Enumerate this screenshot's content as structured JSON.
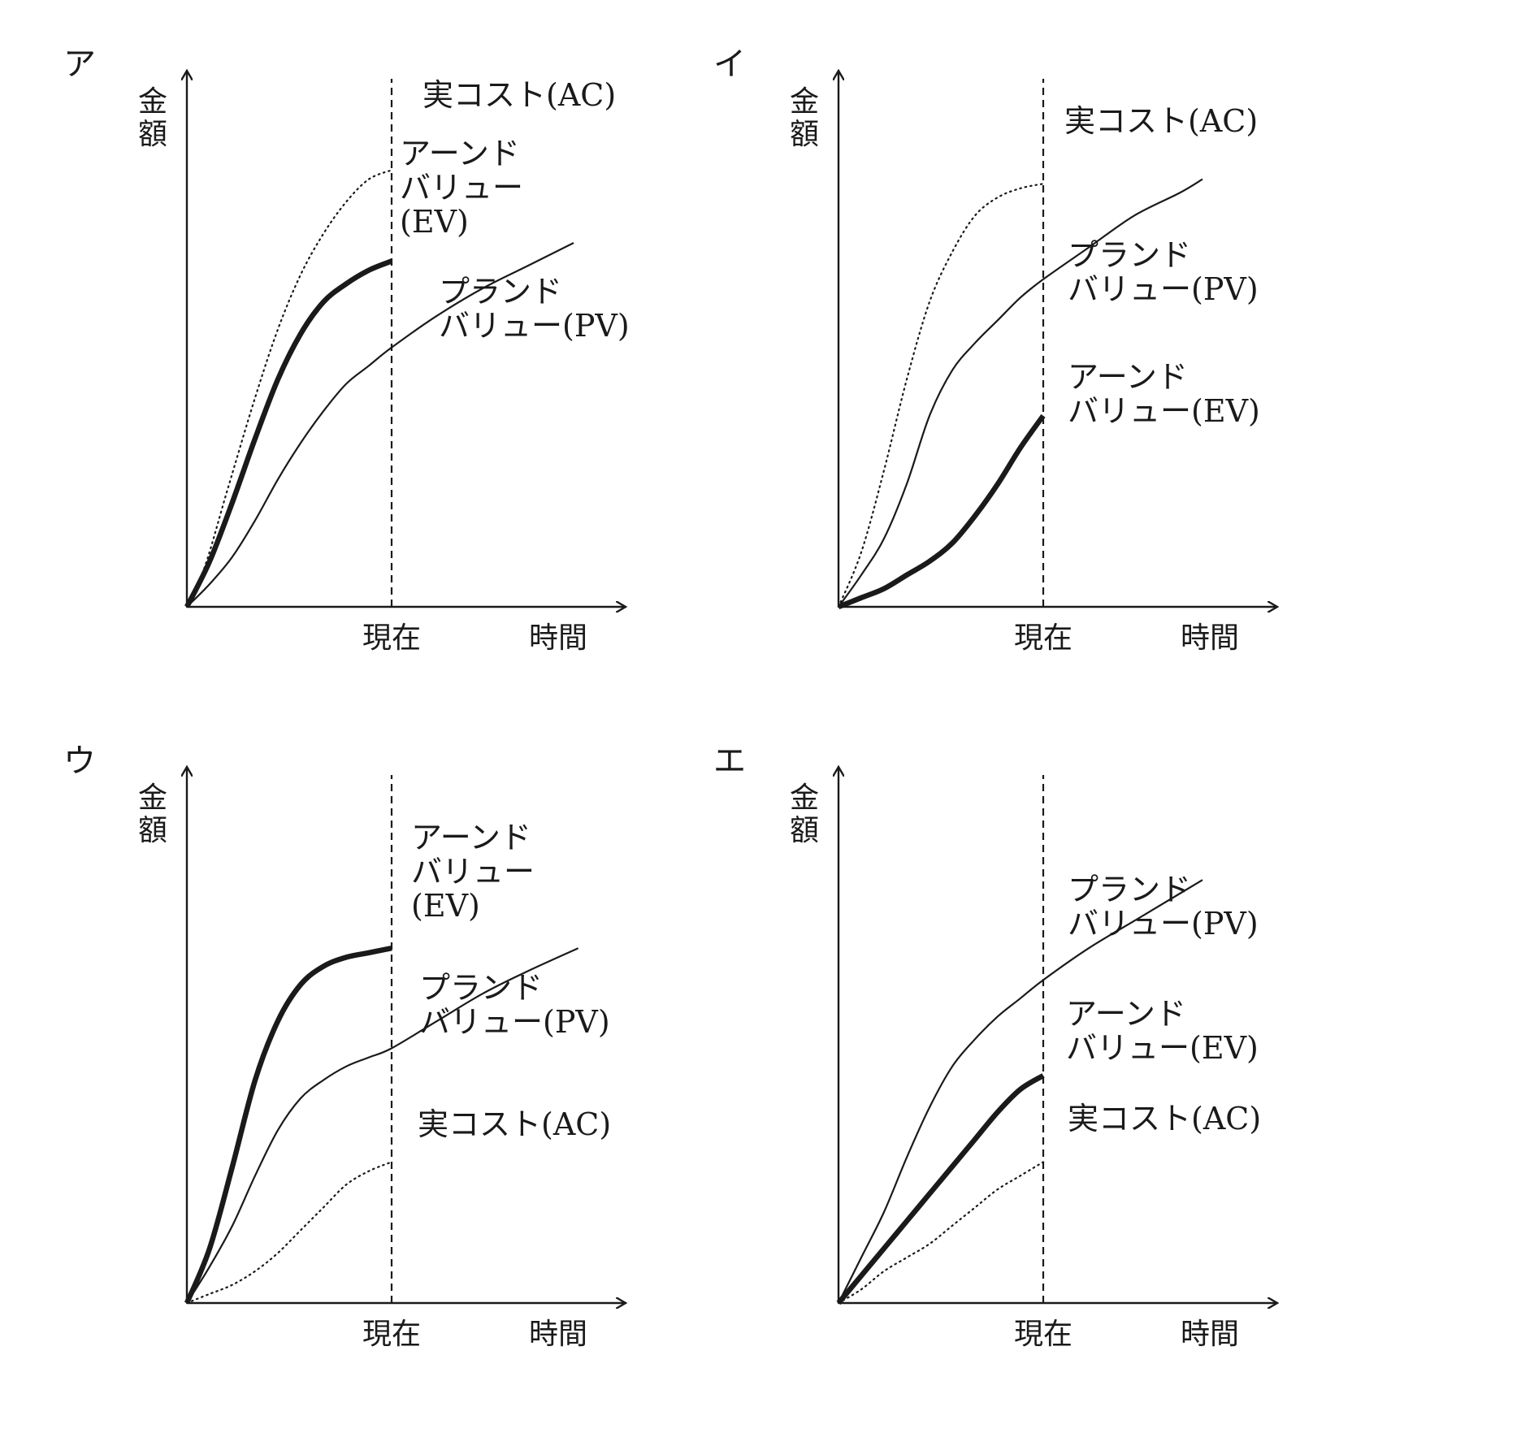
{
  "chart_data": [
    {
      "type": "line",
      "panel": "ア",
      "ylabel": "金額",
      "xlabel": "時間",
      "now_label": "現在",
      "series": [
        {
          "key": "ac",
          "name": "実コスト(AC)",
          "style": "dotted",
          "label_lines": [
            "実コスト(AC)"
          ],
          "points": [
            [
              0,
              0
            ],
            [
              0.04,
              0.09
            ],
            [
              0.09,
              0.26
            ],
            [
              0.15,
              0.46
            ],
            [
              0.2,
              0.61
            ],
            [
              0.25,
              0.73
            ],
            [
              0.3,
              0.82
            ],
            [
              0.35,
              0.89
            ],
            [
              0.4,
              0.94
            ],
            [
              0.45,
              0.96
            ]
          ]
        },
        {
          "key": "ev",
          "name": "アーンドバリュー(EV)",
          "style": "thick",
          "label_lines": [
            "アーンド",
            "バリュー",
            "(EV)"
          ],
          "points": [
            [
              0,
              0
            ],
            [
              0.05,
              0.1
            ],
            [
              0.1,
              0.23
            ],
            [
              0.15,
              0.37
            ],
            [
              0.2,
              0.5
            ],
            [
              0.25,
              0.6
            ],
            [
              0.3,
              0.67
            ],
            [
              0.35,
              0.71
            ],
            [
              0.4,
              0.74
            ],
            [
              0.45,
              0.76
            ]
          ]
        },
        {
          "key": "pv",
          "name": "プランドバリュー(PV)",
          "style": "thin",
          "label_lines": [
            "プランド",
            "バリュー(PV)"
          ],
          "points": [
            [
              0,
              0
            ],
            [
              0.05,
              0.05
            ],
            [
              0.1,
              0.11
            ],
            [
              0.15,
              0.19
            ],
            [
              0.2,
              0.28
            ],
            [
              0.25,
              0.36
            ],
            [
              0.3,
              0.43
            ],
            [
              0.35,
              0.49
            ],
            [
              0.4,
              0.53
            ],
            [
              0.45,
              0.57
            ],
            [
              0.55,
              0.64
            ],
            [
              0.65,
              0.7
            ],
            [
              0.75,
              0.75
            ],
            [
              0.85,
              0.8
            ]
          ]
        }
      ]
    },
    {
      "type": "line",
      "panel": "イ",
      "ylabel": "金額",
      "xlabel": "時間",
      "now_label": "現在",
      "series": [
        {
          "key": "ac",
          "name": "実コスト(AC)",
          "style": "dotted",
          "label_lines": [
            "実コスト(AC)"
          ],
          "points": [
            [
              0,
              0
            ],
            [
              0.05,
              0.12
            ],
            [
              0.1,
              0.3
            ],
            [
              0.15,
              0.5
            ],
            [
              0.2,
              0.67
            ],
            [
              0.25,
              0.78
            ],
            [
              0.3,
              0.86
            ],
            [
              0.35,
              0.9
            ],
            [
              0.4,
              0.92
            ],
            [
              0.45,
              0.93
            ]
          ]
        },
        {
          "key": "pv",
          "name": "プランドバリュー(PV)",
          "style": "thin",
          "label_lines": [
            "プランド",
            "バリュー(PV)"
          ],
          "points": [
            [
              0,
              0
            ],
            [
              0.05,
              0.07
            ],
            [
              0.1,
              0.15
            ],
            [
              0.15,
              0.27
            ],
            [
              0.2,
              0.42
            ],
            [
              0.25,
              0.52
            ],
            [
              0.3,
              0.58
            ],
            [
              0.35,
              0.63
            ],
            [
              0.4,
              0.68
            ],
            [
              0.45,
              0.72
            ],
            [
              0.55,
              0.79
            ],
            [
              0.65,
              0.86
            ],
            [
              0.75,
              0.91
            ],
            [
              0.8,
              0.94
            ]
          ]
        },
        {
          "key": "ev",
          "name": "アーンドバリュー(EV)",
          "style": "thick",
          "label_lines": [
            "アーンド",
            "バリュー(EV)"
          ],
          "points": [
            [
              0,
              0
            ],
            [
              0.05,
              0.02
            ],
            [
              0.1,
              0.04
            ],
            [
              0.15,
              0.07
            ],
            [
              0.2,
              0.1
            ],
            [
              0.25,
              0.14
            ],
            [
              0.3,
              0.2
            ],
            [
              0.35,
              0.27
            ],
            [
              0.4,
              0.35
            ],
            [
              0.45,
              0.42
            ]
          ]
        }
      ]
    },
    {
      "type": "line",
      "panel": "ウ",
      "ylabel": "金額",
      "xlabel": "時間",
      "now_label": "現在",
      "series": [
        {
          "key": "ev",
          "name": "アーンドバリュー(EV)",
          "style": "thick",
          "label_lines": [
            "アーンド",
            "バリュー",
            "(EV)"
          ],
          "points": [
            [
              0,
              0
            ],
            [
              0.05,
              0.12
            ],
            [
              0.1,
              0.3
            ],
            [
              0.15,
              0.49
            ],
            [
              0.2,
              0.62
            ],
            [
              0.25,
              0.7
            ],
            [
              0.3,
              0.74
            ],
            [
              0.35,
              0.76
            ],
            [
              0.4,
              0.77
            ],
            [
              0.45,
              0.78
            ]
          ]
        },
        {
          "key": "pv",
          "name": "プランドバリュー(PV)",
          "style": "thin",
          "label_lines": [
            "プランド",
            "バリュー(PV)"
          ],
          "points": [
            [
              0,
              0
            ],
            [
              0.05,
              0.08
            ],
            [
              0.1,
              0.17
            ],
            [
              0.15,
              0.28
            ],
            [
              0.2,
              0.38
            ],
            [
              0.25,
              0.45
            ],
            [
              0.3,
              0.49
            ],
            [
              0.35,
              0.52
            ],
            [
              0.4,
              0.54
            ],
            [
              0.45,
              0.56
            ],
            [
              0.55,
              0.62
            ],
            [
              0.65,
              0.68
            ],
            [
              0.75,
              0.73
            ],
            [
              0.86,
              0.78
            ]
          ]
        },
        {
          "key": "ac",
          "name": "実コスト(AC)",
          "style": "dotted",
          "label_lines": [
            "実コスト(AC)"
          ],
          "points": [
            [
              0,
              0
            ],
            [
              0.05,
              0.02
            ],
            [
              0.1,
              0.04
            ],
            [
              0.15,
              0.07
            ],
            [
              0.2,
              0.11
            ],
            [
              0.25,
              0.16
            ],
            [
              0.3,
              0.21
            ],
            [
              0.35,
              0.26
            ],
            [
              0.4,
              0.29
            ],
            [
              0.45,
              0.31
            ]
          ]
        }
      ]
    },
    {
      "type": "line",
      "panel": "エ",
      "ylabel": "金額",
      "xlabel": "時間",
      "now_label": "現在",
      "series": [
        {
          "key": "pv",
          "name": "プランドバリュー(PV)",
          "style": "thin",
          "label_lines": [
            "プランド",
            "バリュー(PV)"
          ],
          "points": [
            [
              0,
              0
            ],
            [
              0.05,
              0.1
            ],
            [
              0.1,
              0.2
            ],
            [
              0.15,
              0.32
            ],
            [
              0.2,
              0.43
            ],
            [
              0.25,
              0.52
            ],
            [
              0.3,
              0.58
            ],
            [
              0.35,
              0.63
            ],
            [
              0.4,
              0.67
            ],
            [
              0.45,
              0.71
            ],
            [
              0.55,
              0.78
            ],
            [
              0.65,
              0.84
            ],
            [
              0.75,
              0.9
            ],
            [
              0.8,
              0.93
            ]
          ]
        },
        {
          "key": "ev",
          "name": "アーンドバリュー(EV)",
          "style": "thick",
          "label_lines": [
            "アーンド",
            "バリュー(EV)"
          ],
          "points": [
            [
              0,
              0
            ],
            [
              0.05,
              0.06
            ],
            [
              0.1,
              0.12
            ],
            [
              0.15,
              0.18
            ],
            [
              0.2,
              0.24
            ],
            [
              0.25,
              0.3
            ],
            [
              0.3,
              0.36
            ],
            [
              0.35,
              0.42
            ],
            [
              0.4,
              0.47
            ],
            [
              0.45,
              0.5
            ]
          ]
        },
        {
          "key": "ac",
          "name": "実コスト(AC)",
          "style": "dotted",
          "label_lines": [
            "実コスト(AC)"
          ],
          "points": [
            [
              0,
              0
            ],
            [
              0.05,
              0.03
            ],
            [
              0.1,
              0.07
            ],
            [
              0.15,
              0.1
            ],
            [
              0.2,
              0.13
            ],
            [
              0.25,
              0.17
            ],
            [
              0.3,
              0.21
            ],
            [
              0.35,
              0.25
            ],
            [
              0.4,
              0.28
            ],
            [
              0.45,
              0.31
            ]
          ]
        }
      ]
    }
  ]
}
